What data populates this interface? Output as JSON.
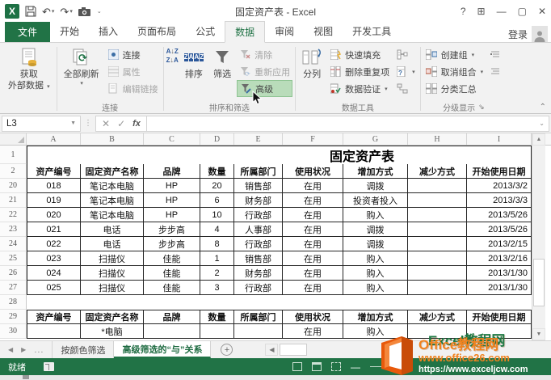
{
  "window": {
    "title": "固定资产表 - Excel"
  },
  "icons": {
    "logo_letter": "X",
    "help": "?",
    "ribbon_display": "⊞",
    "minimize": "—",
    "maximize": "▢",
    "close": "✕",
    "qat_dropdown": "⌄",
    "dropdown": "▾",
    "undo": "↶",
    "redo": "↷",
    "cancel": "✕",
    "enter": "✓",
    "fx": "fx",
    "prev": "◀",
    "next": "▶",
    "ellipsis": "...",
    "add_sheet": "+",
    "up": "▲",
    "down": "▼",
    "left": "◀",
    "collapse": "⌃",
    "launcher": "⇘",
    "more": "⋮",
    "a": "A",
    "z": "Z",
    "refresh": "⟳",
    "zoom_minus": "—",
    "name_box_dropdown": "▼"
  },
  "tabs": {
    "file": "文件",
    "items": [
      "开始",
      "插入",
      "页面布局",
      "公式",
      "数据",
      "审阅",
      "视图",
      "开发工具"
    ],
    "active": "数据",
    "sign_in": "登录"
  },
  "ribbon": {
    "get_external_line1": "获取",
    "get_external_line2": "外部数据",
    "refresh_all": "全部刷新",
    "connections": "连接",
    "properties": "属性",
    "edit_links": "编辑链接",
    "connections_label": "连接",
    "sort": "排序",
    "filter": "筛选",
    "clear": "清除",
    "reapply": "重新应用",
    "advanced": "高级",
    "sort_filter_label": "排序和筛选",
    "text_to_columns": "分列",
    "flash_fill": "快速填充",
    "remove_duplicates": "删除重复项",
    "data_validation": "数据验证",
    "data_tools_label": "数据工具",
    "group": "创建组",
    "ungroup": "取消组合",
    "subtotal": "分类汇总",
    "outline_label": "分级显示"
  },
  "formula_bar": {
    "name_box": "L3"
  },
  "grid": {
    "columns": [
      "A",
      "B",
      "C",
      "D",
      "E",
      "F",
      "G",
      "H",
      "I"
    ],
    "header_cells": [
      "资产编号",
      "固定资产名称",
      "品牌",
      "数量",
      "所属部门",
      "使用状况",
      "增加方式",
      "减少方式",
      "开始使用日期"
    ],
    "rows": [
      {
        "num": "1",
        "type": "title",
        "title": "固定资产表"
      },
      {
        "num": "2",
        "type": "header"
      },
      {
        "num": "20",
        "type": "data",
        "cells": [
          "018",
          "笔记本电脑",
          "HP",
          "20",
          "销售部",
          "在用",
          "调拨",
          "",
          "2013/3/2"
        ]
      },
      {
        "num": "21",
        "type": "data",
        "cells": [
          "019",
          "笔记本电脑",
          "HP",
          "6",
          "财务部",
          "在用",
          "投资者投入",
          "",
          "2013/3/3"
        ]
      },
      {
        "num": "22",
        "type": "data",
        "cells": [
          "020",
          "笔记本电脑",
          "HP",
          "10",
          "行政部",
          "在用",
          "购入",
          "",
          "2013/5/26"
        ]
      },
      {
        "num": "23",
        "type": "data",
        "cells": [
          "021",
          "电话",
          "步步高",
          "4",
          "人事部",
          "在用",
          "调拨",
          "",
          "2013/5/26"
        ]
      },
      {
        "num": "24",
        "type": "data",
        "cells": [
          "022",
          "电话",
          "步步高",
          "8",
          "行政部",
          "在用",
          "调拨",
          "",
          "2013/2/15"
        ]
      },
      {
        "num": "25",
        "type": "data",
        "cells": [
          "023",
          "扫描仪",
          "佳能",
          "1",
          "销售部",
          "在用",
          "购入",
          "",
          "2013/2/16"
        ]
      },
      {
        "num": "26",
        "type": "data",
        "cells": [
          "024",
          "扫描仪",
          "佳能",
          "2",
          "财务部",
          "在用",
          "购入",
          "",
          "2013/1/30"
        ]
      },
      {
        "num": "27",
        "type": "data",
        "cells": [
          "025",
          "扫描仪",
          "佳能",
          "3",
          "行政部",
          "在用",
          "购入",
          "",
          "2013/1/30"
        ]
      },
      {
        "num": "28",
        "type": "blank",
        "cells": [
          "",
          "",
          "",
          "",
          "",
          "",
          "",
          "",
          ""
        ]
      },
      {
        "num": "29",
        "type": "header"
      },
      {
        "num": "30",
        "type": "criteria",
        "cells": [
          "",
          "*电脑",
          "",
          "",
          "",
          "在用",
          "购入",
          "",
          ""
        ]
      }
    ]
  },
  "sheet_bar": {
    "tabs": [
      "按颜色筛选",
      "高级筛选的“与”关系"
    ],
    "active": "高级筛选的“与”关系"
  },
  "status_bar": {
    "ready": "就绪"
  },
  "watermark": {
    "brand_orange": "Office教程网",
    "brand_green": "Excel教程网",
    "url_orange": "www.office26.com",
    "url_white": "https://www.exceljcw.com"
  }
}
